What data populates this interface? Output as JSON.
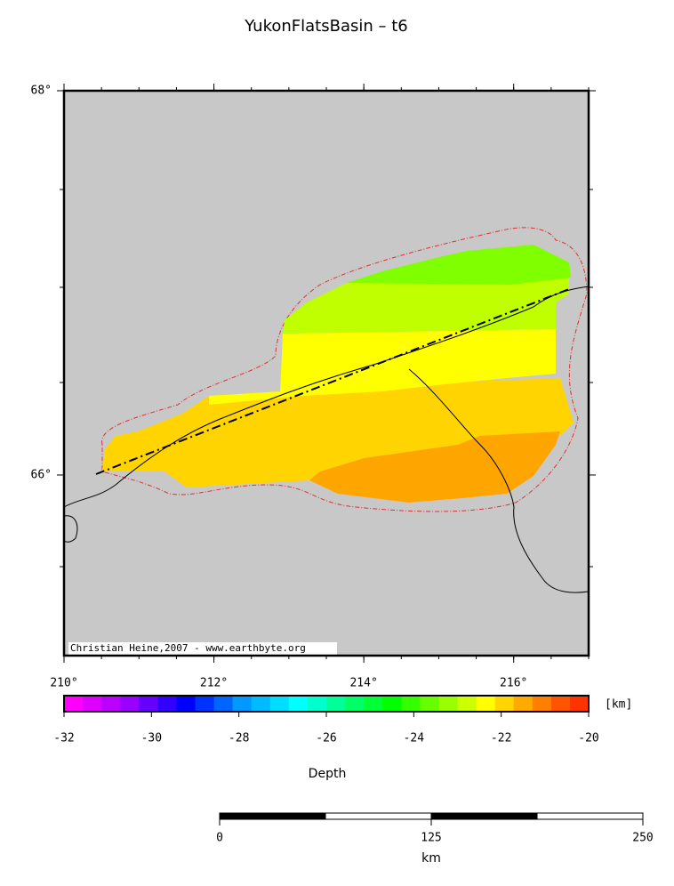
{
  "title": "YukonFlatsBasin – t6",
  "map": {
    "xlim": [
      210,
      217
    ],
    "xticks": [
      {
        "value": 210,
        "label": "210°"
      },
      {
        "value": 212,
        "label": "212°"
      },
      {
        "value": 214,
        "label": "214°"
      },
      {
        "value": 216,
        "label": "216°"
      }
    ],
    "ylim": [
      65.06,
      68
    ],
    "yticks": [
      {
        "value": 66,
        "label": "66°"
      },
      {
        "value": 68,
        "label": "68°"
      }
    ],
    "credit": "Christian Heine,2007 - www.earthbyte.org"
  },
  "colorbar": {
    "lim": [
      -32,
      -20
    ],
    "ticks": [
      -32,
      -30,
      -28,
      -26,
      -24,
      -22,
      -20
    ],
    "colors": [
      "#ff00ff",
      "#dd00ff",
      "#bb00ff",
      "#9900ff",
      "#6600ff",
      "#3300ff",
      "#0000ff",
      "#0033ff",
      "#0066ff",
      "#0099ff",
      "#00bbff",
      "#00ddff",
      "#00ffff",
      "#00ffcc",
      "#00ff99",
      "#00ff66",
      "#00ff33",
      "#00ff00",
      "#33ff00",
      "#66ff00",
      "#99ff00",
      "#ccff00",
      "#ffff00",
      "#ffd400",
      "#ffaa00",
      "#ff7f00",
      "#ff5500",
      "#ff3300"
    ],
    "unit": "[km]",
    "label": "Depth"
  },
  "scalebar": {
    "lim": [
      0,
      250
    ],
    "ticks": [
      0,
      125,
      250
    ],
    "unit": "km"
  }
}
